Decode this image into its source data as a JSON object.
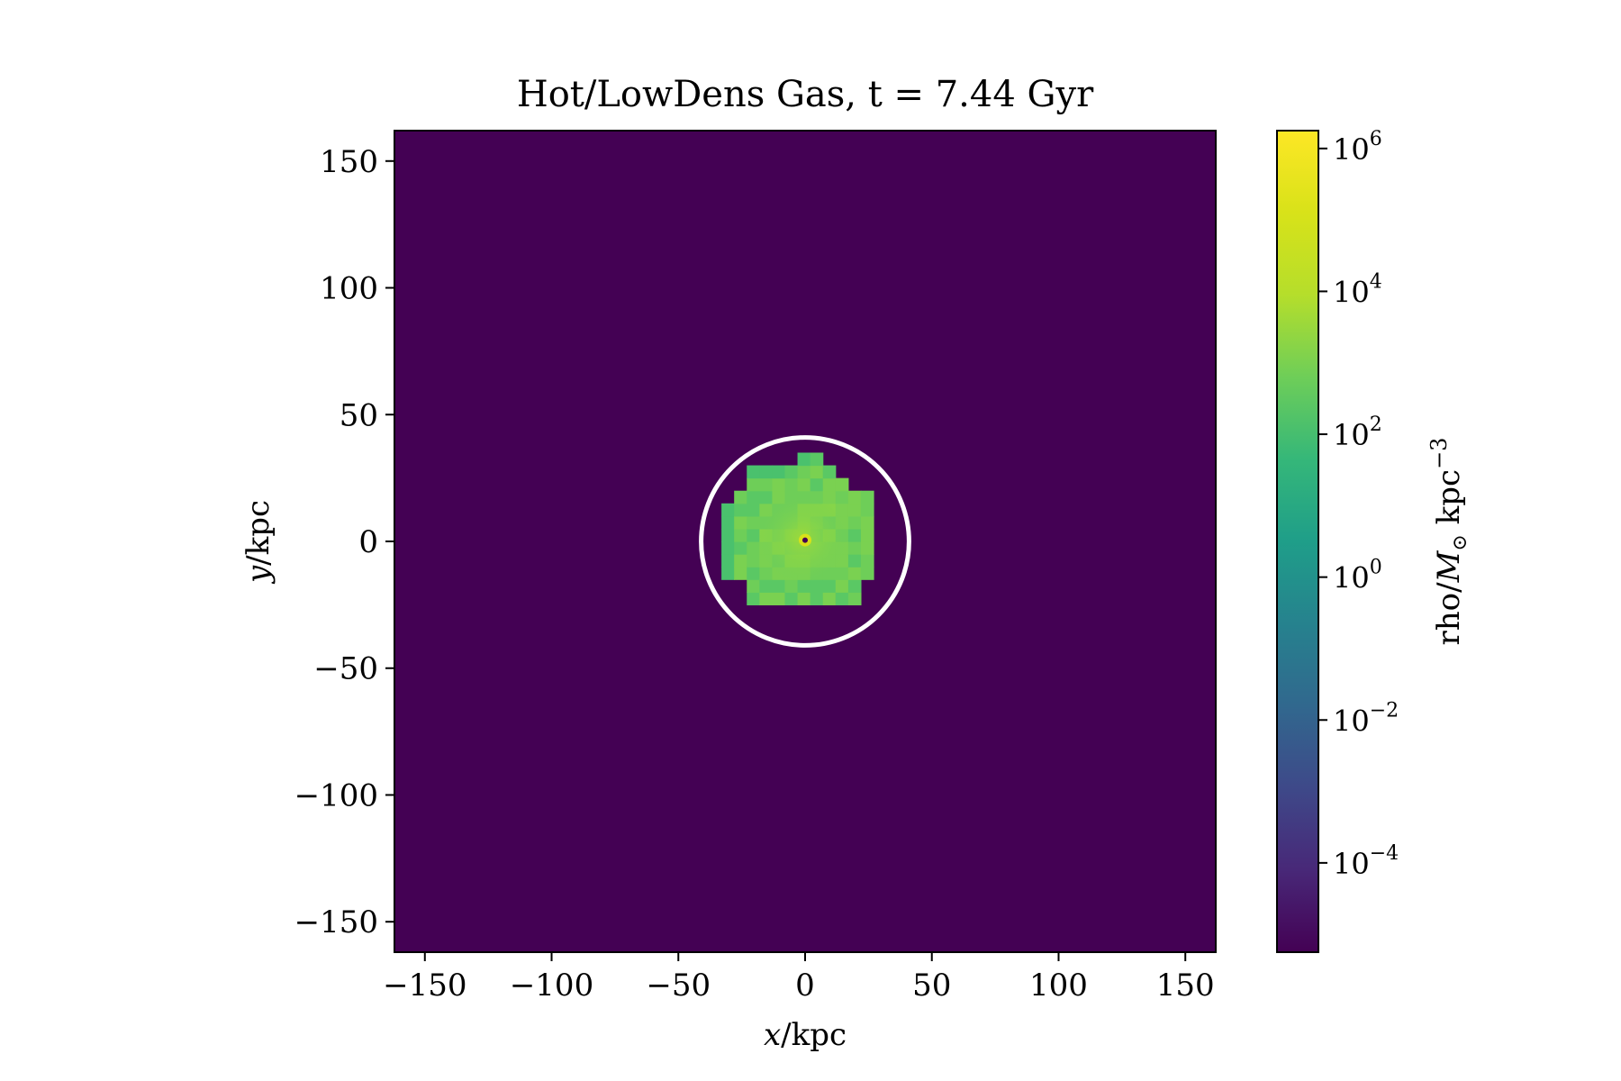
{
  "chart_data": {
    "type": "heatmap",
    "title": "Hot/LowDens Gas, t = 7.44 Gyr",
    "xlabel": "x/kpc",
    "ylabel": "y/kpc",
    "xlim": [
      -162,
      162
    ],
    "ylim": [
      -162,
      162
    ],
    "x_ticks": [
      {
        "value": -150,
        "label": "−150"
      },
      {
        "value": -100,
        "label": "−100"
      },
      {
        "value": -50,
        "label": "−50"
      },
      {
        "value": 0,
        "label": "0"
      },
      {
        "value": 50,
        "label": "50"
      },
      {
        "value": 100,
        "label": "100"
      },
      {
        "value": 150,
        "label": "150"
      }
    ],
    "y_ticks": [
      {
        "value": 150,
        "label": "150"
      },
      {
        "value": 100,
        "label": "100"
      },
      {
        "value": 50,
        "label": "50"
      },
      {
        "value": 0,
        "label": "0"
      },
      {
        "value": -50,
        "label": "−50"
      },
      {
        "value": -100,
        "label": "−100"
      },
      {
        "value": -150,
        "label": "−150"
      }
    ],
    "colorbar": {
      "label": "rho/M⊙ kpc⁻³",
      "scale": "log",
      "colormap": "viridis",
      "range_log10": [
        -5.25,
        6.25
      ],
      "ticks": [
        {
          "log10": 6,
          "base": "10",
          "exp": "6"
        },
        {
          "log10": 4,
          "base": "10",
          "exp": "4"
        },
        {
          "log10": 2,
          "base": "10",
          "exp": "2"
        },
        {
          "log10": 0,
          "base": "10",
          "exp": "0"
        },
        {
          "log10": -2,
          "base": "10",
          "exp": "−2"
        },
        {
          "log10": -4,
          "base": "10",
          "exp": "−4"
        }
      ]
    },
    "background_log10": -5.25,
    "gas_region": {
      "center": [
        -1,
        1
      ],
      "extent_x": [
        -38,
        26
      ],
      "extent_y": [
        -25,
        38
      ],
      "typical_log10": 3.6,
      "peak_log10": 6.0
    },
    "circle": {
      "center": [
        0,
        0
      ],
      "radius": 41,
      "color": "#ffffff"
    },
    "colors": {
      "background": "#440154",
      "frame": "#000000"
    }
  }
}
